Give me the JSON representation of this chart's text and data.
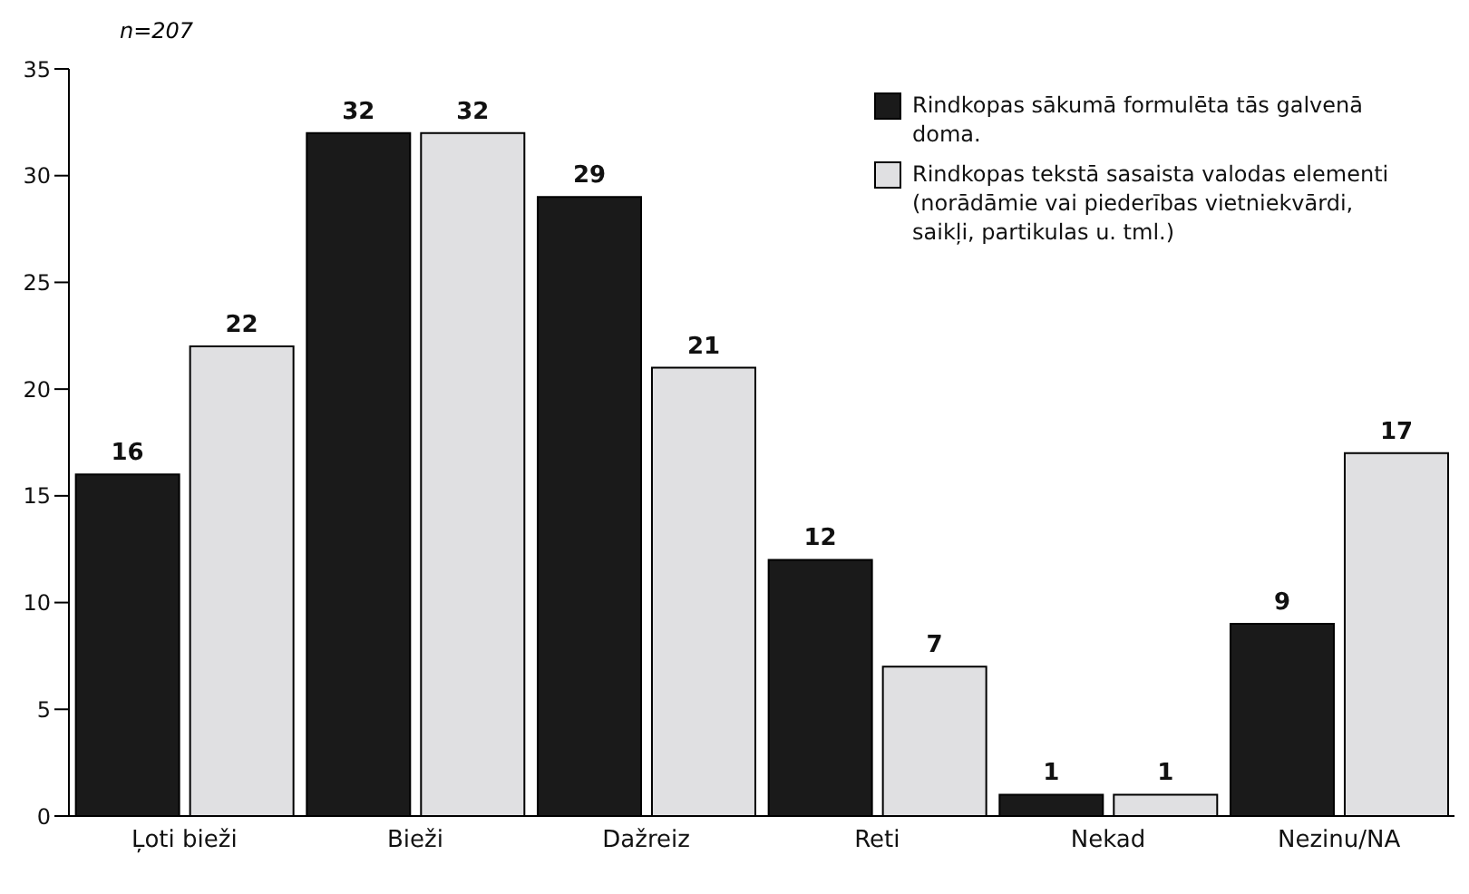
{
  "chart_data": {
    "type": "bar",
    "annotations": [
      "n=207"
    ],
    "categories": [
      "Ļoti bieži",
      "Bieži",
      "Dažreiz",
      "Reti",
      "Nekad",
      "Nezinu/NA"
    ],
    "series": [
      {
        "name": "Rindkopas sākumā formulēta tās galvenā doma.",
        "color": "#1a1a1a",
        "values": [
          16,
          32,
          29,
          12,
          1,
          9
        ]
      },
      {
        "name": "Rindkopas tekstā sasaista valodas elementi (norādāmie vai piederības vietniekvārdi, saikļi, partikulas u. tml.)",
        "color": "#e0e0e2",
        "values": [
          22,
          32,
          21,
          7,
          1,
          17
        ]
      }
    ],
    "ylim": [
      0,
      35
    ],
    "yticks": [
      0,
      5,
      10,
      15,
      20,
      25,
      30,
      35
    ],
    "grid": false,
    "legend": "top right",
    "data_labels": true
  }
}
